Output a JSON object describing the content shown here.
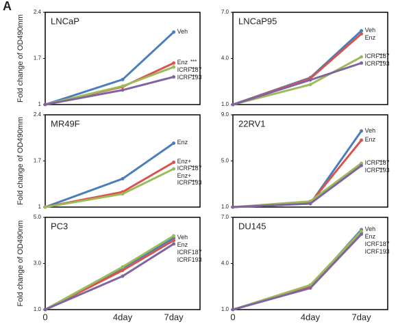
{
  "panel_label": "A",
  "categories": [
    "0",
    "4day",
    "7day"
  ],
  "chart_data": [
    {
      "type": "line",
      "title": "LNCaP",
      "y_label": "Fold change of OD490mm",
      "ylim": [
        1,
        2.4
      ],
      "yticks": [
        1,
        1.7,
        2.4
      ],
      "series": [
        {
          "name": "Veh",
          "color": "#4a7ebb",
          "values": [
            1,
            1.38,
            2.1
          ]
        },
        {
          "name": "Enz",
          "color": "#d9534f",
          "values": [
            1,
            1.27,
            1.63
          ],
          "significance": "***"
        },
        {
          "name": "ICRF187",
          "color": "#9bbb59",
          "values": [
            1,
            1.28,
            1.57
          ],
          "significance": "***"
        },
        {
          "name": "ICRF193",
          "color": "#8064a2",
          "values": [
            1,
            1.22,
            1.42
          ],
          "significance": "***"
        }
      ]
    },
    {
      "type": "line",
      "title": "LNCaP95",
      "ylim": [
        1,
        7
      ],
      "yticks": [
        {
          "value": 1,
          "label": "1.0"
        },
        {
          "value": 4,
          "label": "4.0"
        },
        {
          "value": 7,
          "label": "7.0"
        }
      ],
      "series": [
        {
          "name": "Veh",
          "color": "#4a7ebb",
          "values": [
            1,
            2.75,
            5.8
          ]
        },
        {
          "name": "Enz",
          "color": "#d9534f",
          "values": [
            1,
            2.7,
            5.6
          ]
        },
        {
          "name": "ICRF187",
          "color": "#9bbb59",
          "values": [
            1,
            2.3,
            4.1
          ],
          "significance": "***"
        },
        {
          "name": "ICRF193",
          "color": "#8064a2",
          "values": [
            1,
            2.6,
            3.7
          ],
          "significance": "***"
        }
      ]
    },
    {
      "type": "line",
      "title": "MR49F",
      "y_label": "Fold change of OD490mm",
      "ylim": [
        1,
        2.4
      ],
      "yticks": [
        1,
        1.7,
        2.4
      ],
      "series": [
        {
          "name": "Enz",
          "color": "#4a7ebb",
          "values": [
            1,
            1.43,
            1.97
          ]
        },
        {
          "name": "Enz+ ICRF187",
          "color": "#d9534f",
          "values": [
            1,
            1.23,
            1.68
          ],
          "significance": "***"
        },
        {
          "name": "Enz+ ICRF193",
          "color": "#9bbb59",
          "values": [
            1,
            1.2,
            1.58
          ],
          "significance": "***"
        }
      ]
    },
    {
      "type": "line",
      "title": "22RV1",
      "ylim": [
        1,
        9
      ],
      "yticks": [
        {
          "value": 1,
          "label": "1.0"
        },
        {
          "value": 5,
          "label": "5.0"
        },
        {
          "value": 9,
          "label": "9.0"
        }
      ],
      "series": [
        {
          "name": "Veh",
          "color": "#4a7ebb",
          "values": [
            1,
            1.3,
            7.6
          ]
        },
        {
          "name": "Enz",
          "color": "#d9534f",
          "values": [
            1,
            1.35,
            6.8
          ]
        },
        {
          "name": "ICRF187",
          "color": "#9bbb59",
          "values": [
            1,
            1.5,
            4.8
          ],
          "significance": "***"
        },
        {
          "name": "ICRF193",
          "color": "#8064a2",
          "values": [
            1,
            1.3,
            4.6
          ],
          "significance": "***"
        }
      ]
    },
    {
      "type": "line",
      "title": "PC3",
      "y_label": "Fold change of OD490nm",
      "ylim": [
        1,
        5
      ],
      "yticks": [
        {
          "value": 1,
          "label": "1.0"
        },
        {
          "value": 3,
          "label": "3.0"
        },
        {
          "value": 5,
          "label": "5.0"
        }
      ],
      "series": [
        {
          "name": "Veh",
          "color": "#4a7ebb",
          "values": [
            1,
            2.8,
            4.1
          ]
        },
        {
          "name": "Enz",
          "color": "#d9534f",
          "values": [
            1,
            2.7,
            4.0
          ]
        },
        {
          "name": "ICRF187",
          "color": "#9bbb59",
          "values": [
            1,
            2.85,
            4.2
          ]
        },
        {
          "name": "ICRF193",
          "color": "#8064a2",
          "values": [
            1,
            2.45,
            3.85
          ]
        }
      ]
    },
    {
      "type": "line",
      "title": "DU145",
      "ylim": [
        1,
        7
      ],
      "yticks": [
        {
          "value": 1,
          "label": "1.0"
        },
        {
          "value": 4,
          "label": "4.0"
        },
        {
          "value": 7,
          "label": "7.0"
        }
      ],
      "series": [
        {
          "name": "Veh",
          "color": "#4a7ebb",
          "values": [
            1,
            2.5,
            6.2
          ]
        },
        {
          "name": "Enz",
          "color": "#d9534f",
          "values": [
            1,
            2.45,
            6.0
          ]
        },
        {
          "name": "ICRF187",
          "color": "#9bbb59",
          "values": [
            1,
            2.6,
            6.1
          ]
        },
        {
          "name": "ICRF193",
          "color": "#8064a2",
          "values": [
            1,
            2.4,
            5.9
          ]
        }
      ]
    }
  ]
}
